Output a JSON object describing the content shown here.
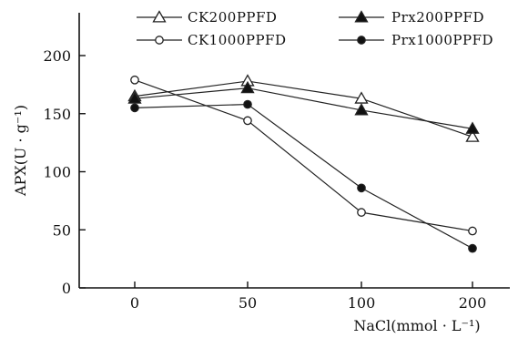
{
  "chart_data": {
    "type": "line",
    "title": "",
    "xlabel": "NaCl(mmol · L⁻¹)",
    "ylabel": "APX(U · g⁻¹)",
    "x_categories": [
      "0",
      "50",
      "100",
      "200"
    ],
    "y_ticks": [
      0,
      50,
      100,
      150,
      200
    ],
    "ylim": [
      0,
      230
    ],
    "grid": false,
    "legend_position": "top",
    "series": [
      {
        "name": "CK200PPFD",
        "marker": "open-triangle",
        "values": [
          165,
          178,
          163,
          130
        ]
      },
      {
        "name": "Prx200PPFD",
        "marker": "filled-triangle",
        "values": [
          163,
          172,
          153,
          137
        ]
      },
      {
        "name": "CK1000PPFD",
        "marker": "open-circle",
        "values": [
          179,
          144,
          65,
          49
        ]
      },
      {
        "name": "Prx1000PPFD",
        "marker": "filled-circle",
        "values": [
          155,
          158,
          86,
          34
        ]
      }
    ],
    "colors": {
      "line": "#222222",
      "marker_fill": "#111111",
      "open_fill": "#ffffff"
    }
  }
}
